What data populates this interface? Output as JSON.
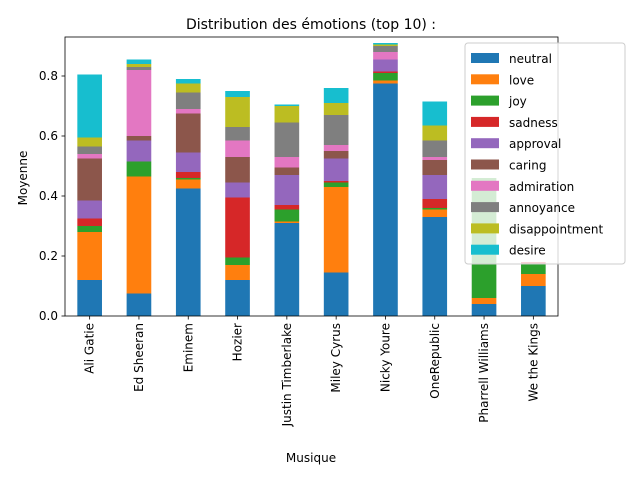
{
  "chart_data": {
    "type": "bar",
    "stacked": true,
    "title": "Distribution des émotions (top 10) :",
    "xlabel": "Musique",
    "ylabel": "Moyenne",
    "ylim": [
      0,
      0.93
    ],
    "yticks": [
      "0.0",
      "0.2",
      "0.4",
      "0.6",
      "0.8"
    ],
    "ytick_values": [
      0,
      0.2,
      0.4,
      0.6,
      0.8
    ],
    "grid": false,
    "legend_position": "top-right",
    "categories": [
      "Ali Gatie",
      "Ed Sheeran",
      "Eminem",
      "Hozier",
      "Justin Timberlake",
      "Miley Cyrus",
      "Nicky Youre",
      "OneRepublic",
      "Pharrell Williams",
      "We the Kings"
    ],
    "series": [
      {
        "name": "neutral",
        "color": "#1f77b4",
        "values": [
          0.12,
          0.075,
          0.425,
          0.12,
          0.31,
          0.145,
          0.775,
          0.33,
          0.04,
          0.1
        ]
      },
      {
        "name": "love",
        "color": "#ff7f0e",
        "values": [
          0.16,
          0.39,
          0.03,
          0.05,
          0.005,
          0.285,
          0.01,
          0.025,
          0.02,
          0.04
        ]
      },
      {
        "name": "joy",
        "color": "#2ca02c",
        "values": [
          0.02,
          0.05,
          0.005,
          0.025,
          0.04,
          0.015,
          0.025,
          0.005,
          0.4,
          0.035
        ]
      },
      {
        "name": "sadness",
        "color": "#d62728",
        "values": [
          0.025,
          0.0,
          0.02,
          0.2,
          0.015,
          0.005,
          0.005,
          0.03,
          0.0,
          0.005
        ]
      },
      {
        "name": "approval",
        "color": "#9467bd",
        "values": [
          0.06,
          0.07,
          0.065,
          0.05,
          0.1,
          0.075,
          0.04,
          0.08,
          0.0,
          0.0
        ]
      },
      {
        "name": "caring",
        "color": "#8c564b",
        "values": [
          0.14,
          0.015,
          0.13,
          0.085,
          0.025,
          0.025,
          0.0,
          0.05,
          0.0,
          0.0
        ]
      },
      {
        "name": "admiration",
        "color": "#e377c2",
        "values": [
          0.015,
          0.22,
          0.015,
          0.055,
          0.035,
          0.02,
          0.025,
          0.01,
          0.0,
          0.0
        ]
      },
      {
        "name": "annoyance",
        "color": "#7f7f7f",
        "values": [
          0.025,
          0.01,
          0.055,
          0.045,
          0.115,
          0.1,
          0.02,
          0.055,
          0.0,
          0.0
        ]
      },
      {
        "name": "disappointment",
        "color": "#bcbd22",
        "values": [
          0.03,
          0.01,
          0.03,
          0.1,
          0.055,
          0.04,
          0.005,
          0.05,
          0.0,
          0.0
        ]
      },
      {
        "name": "desire",
        "color": "#17becf",
        "values": [
          0.21,
          0.015,
          0.015,
          0.02,
          0.005,
          0.05,
          0.005,
          0.08,
          0.0,
          0.0
        ]
      }
    ]
  }
}
